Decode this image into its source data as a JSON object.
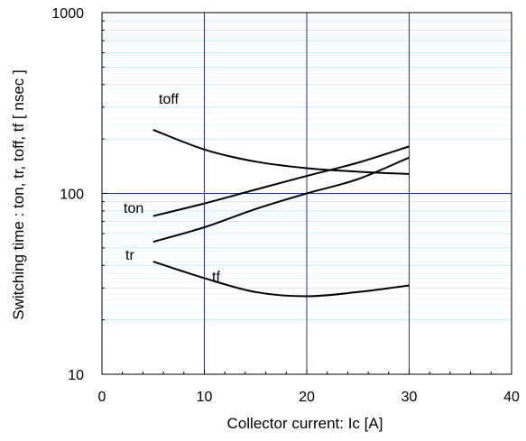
{
  "chart_data": {
    "type": "line",
    "xlabel": "Collector current: Ic [A]",
    "ylabel": "Switching time  :  ton, tr, toff, tf  [ nsec ]",
    "xlim": [
      0,
      40
    ],
    "ylim": [
      10,
      1000
    ],
    "yscale": "log",
    "x_ticks": [
      0,
      10,
      20,
      30,
      40
    ],
    "x_tick_labels": [
      "0",
      "10",
      "20",
      "30",
      "40"
    ],
    "y_ticks": [
      10,
      100,
      1000
    ],
    "y_tick_labels": [
      "10",
      "100",
      "1000"
    ],
    "grid": "log minor lines (light blue), major lines at x=10,20,30 and y=100 (dark blue)",
    "series": [
      {
        "name": "toff",
        "x": [
          5,
          10,
          15,
          20,
          25,
          30
        ],
        "y": [
          225,
          175,
          150,
          138,
          132,
          128
        ]
      },
      {
        "name": "ton",
        "x": [
          5,
          10,
          15,
          20,
          25,
          30
        ],
        "y": [
          75,
          88,
          105,
          125,
          148,
          182
        ]
      },
      {
        "name": "tr",
        "x": [
          5,
          10,
          15,
          20,
          25,
          30
        ],
        "y": [
          54,
          65,
          82,
          100,
          120,
          158
        ]
      },
      {
        "name": "tf",
        "x": [
          5,
          10,
          15,
          20,
          25,
          30
        ],
        "y": [
          42,
          34,
          28.5,
          27,
          28.5,
          31
        ]
      }
    ]
  }
}
